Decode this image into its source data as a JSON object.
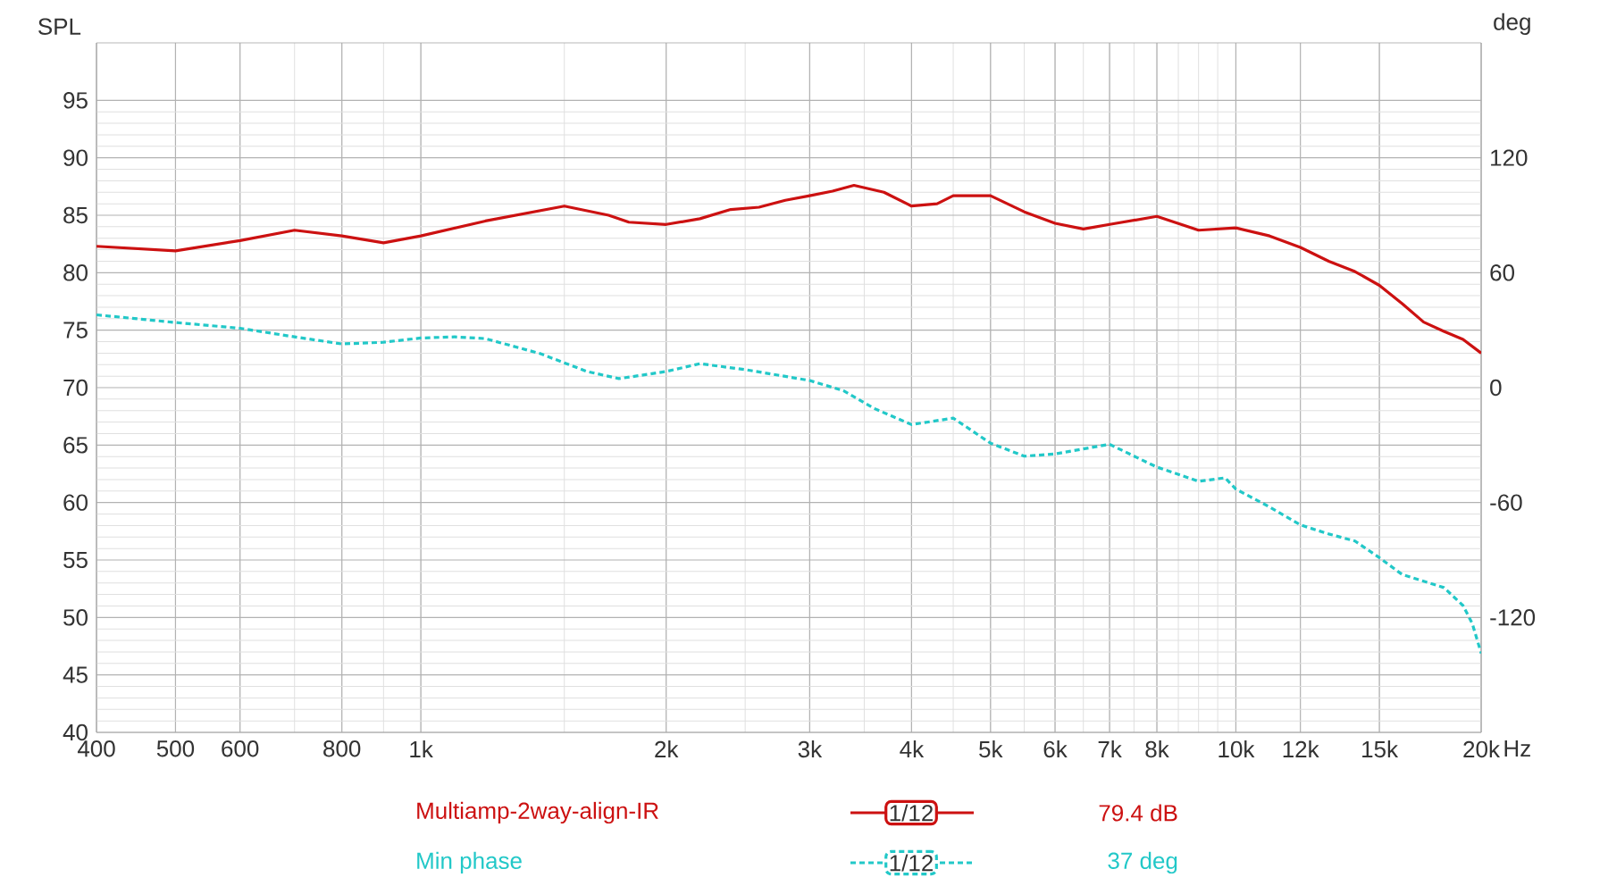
{
  "chart_data": {
    "type": "line",
    "ylabel": "SPL",
    "y2label": "deg",
    "xlabel": "Hz",
    "log": "x",
    "grid": true,
    "legend": "bottom",
    "marker": "none",
    "xlim": [
      400,
      20000
    ],
    "xticks": [
      400,
      500,
      600,
      800,
      {
        "value": 1000,
        "label": "1k"
      },
      {
        "value": 2000,
        "label": "2k"
      },
      {
        "value": 3000,
        "label": "3k"
      },
      {
        "value": 4000,
        "label": "4k"
      },
      {
        "value": 5000,
        "label": "5k"
      },
      {
        "value": 6000,
        "label": "6k"
      },
      {
        "value": 7000,
        "label": "7k"
      },
      {
        "value": 8000,
        "label": "8k"
      },
      {
        "value": 10000,
        "label": "10k"
      },
      {
        "value": 12000,
        "label": "12k"
      },
      {
        "value": 15000,
        "label": "15k"
      },
      {
        "value": 20000,
        "label": "20k"
      }
    ],
    "ylim": [
      40,
      100
    ],
    "yticks": [
      40,
      45,
      50,
      55,
      60,
      65,
      70,
      75,
      80,
      85,
      90,
      95
    ],
    "y2lim": [
      -180,
      180
    ],
    "y2ticks": [
      -120,
      -60,
      0,
      60,
      120
    ],
    "series": [
      {
        "name": "Multiamp-2way-align-IR",
        "color": "#cc1111",
        "line_style": "solid",
        "x": [
          400,
          500,
          600,
          700,
          800,
          900,
          1000,
          1200,
          1500,
          1700,
          1800,
          2000,
          2200,
          2400,
          2600,
          2800,
          3000,
          3200,
          3400,
          3700,
          4000,
          4300,
          4500,
          5000,
          5500,
          6000,
          6500,
          7000,
          8000,
          9000,
          10000,
          11000,
          12000,
          13000,
          14000,
          15000,
          16000,
          17000,
          18000,
          19000,
          20000
        ],
        "values": [
          82.3,
          81.9,
          82.8,
          83.7,
          83.2,
          82.6,
          83.2,
          84.5,
          85.8,
          85.0,
          84.4,
          84.2,
          84.7,
          85.5,
          85.7,
          86.3,
          86.7,
          87.1,
          87.6,
          87.0,
          85.8,
          86.0,
          86.7,
          86.7,
          85.3,
          84.3,
          83.8,
          84.2,
          84.9,
          83.7,
          83.9,
          83.2,
          82.2,
          81.0,
          80.1,
          78.9,
          77.3,
          75.7,
          74.9,
          74.2,
          73.0
        ]
      },
      {
        "name": "Min phase",
        "color": "#22c8c8",
        "line_style": "dashed",
        "axis": "y2",
        "x": [
          400,
          500,
          600,
          700,
          800,
          900,
          1000,
          1100,
          1200,
          1400,
          1600,
          1750,
          2000,
          2200,
          2500,
          3000,
          3300,
          3600,
          4000,
          4500,
          5000,
          5500,
          6000,
          7000,
          8000,
          9000,
          9700,
          10000,
          11000,
          12000,
          13000,
          14000,
          15000,
          16000,
          18000,
          19000,
          19500,
          20000
        ],
        "values": [
          38,
          34,
          31,
          26.5,
          22.8,
          23.7,
          25.9,
          26.5,
          25.6,
          17.8,
          8.4,
          4.7,
          8.4,
          12.5,
          9.4,
          3.7,
          -1.6,
          -10.9,
          -19.3,
          -15.9,
          -29,
          -35.8,
          -34.6,
          -29.6,
          -41.5,
          -48.9,
          -47.1,
          -53,
          -62.3,
          -71.7,
          -76.4,
          -80.1,
          -88.8,
          -97.6,
          -104.4,
          -113.8,
          -123.1,
          -138.7
        ]
      }
    ],
    "annotations": [
      "1/12",
      "1/12",
      "79.4 dB",
      "37 deg"
    ]
  }
}
